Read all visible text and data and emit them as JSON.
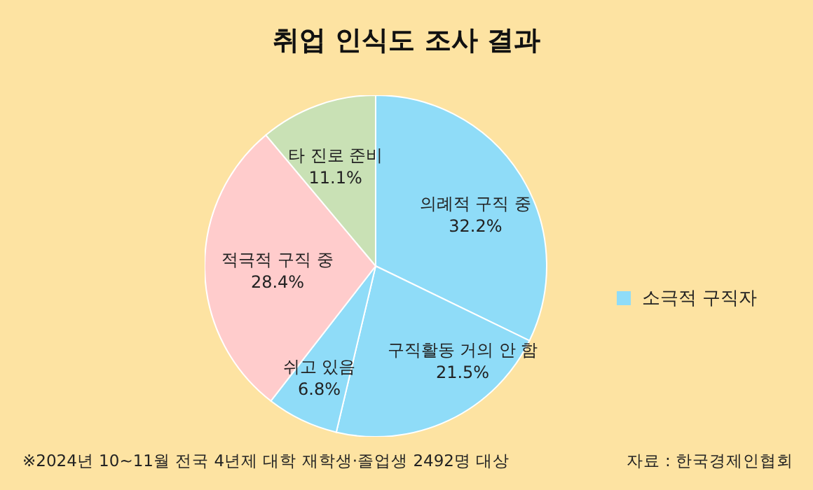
{
  "chart_data": {
    "type": "pie",
    "title": "취업 인식도 조사 결과",
    "categories": [
      "의례적 구직 중",
      "구직활동 거의 안 함",
      "쉬고 있음",
      "적극적 구직 중",
      "타 진로 준비"
    ],
    "values": [
      32.2,
      21.5,
      6.8,
      28.4,
      11.1
    ],
    "value_labels": [
      "32.2%",
      "21.5%",
      "6.8%",
      "28.4%",
      "11.1%"
    ],
    "colors": [
      "#8fdcf8",
      "#8fdcf8",
      "#8fdcf8",
      "#ffcccc",
      "#c9e1b5"
    ],
    "legend_title": "소극적 구직자",
    "annotations": [
      "※2024년 10~11월 전국 4년제 대학 재학생·졸업생 2492명 대상",
      "자료 : 한국경제인협회"
    ]
  }
}
